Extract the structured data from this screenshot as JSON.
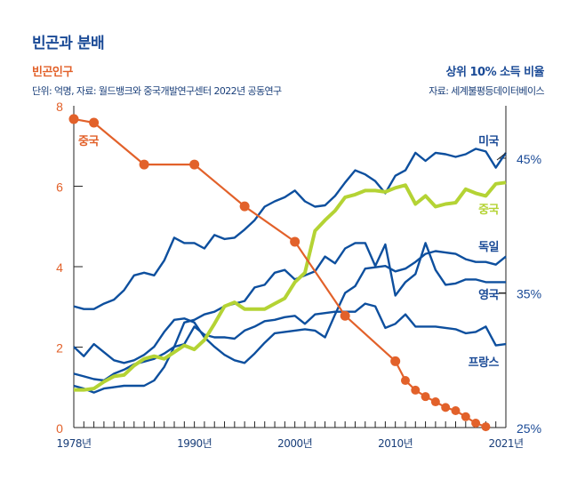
{
  "header": {
    "title": "빈곤과 분배",
    "left_title": "빈곤인구",
    "left_subtitle": "단위: 억명, 자료: 월드뱅크와 중국개발연구센터 2022년 공동연구",
    "right_title": "상위 10% 소득 비율",
    "right_subtitle": "자료: 세계불평등데이터베이스"
  },
  "chart_data": {
    "type": "line",
    "title": "빈곤과 분배",
    "x_ticks": [
      "1978년",
      "1990년",
      "2000년",
      "2010년",
      "2021년"
    ],
    "xlim": [
      1978,
      2021
    ],
    "left_axis": {
      "label": "빈곤인구",
      "unit": "억명",
      "ylim": [
        0,
        8
      ],
      "ticks": [
        "0",
        "2",
        "4",
        "6",
        "8"
      ]
    },
    "right_axis": {
      "label": "상위 10% 소득 비율",
      "ylim": [
        25,
        45
      ],
      "ticks": [
        "25%",
        "35%",
        "45%"
      ]
    },
    "grid": false,
    "colors": {
      "poverty": "#e2612a",
      "china_top10": "#b4d334",
      "others": "#0d4f9e",
      "title": "#1a4a96"
    },
    "poverty_series": {
      "name": "중국",
      "axis": "left",
      "x": [
        1978,
        1980,
        1985,
        1990,
        1995,
        2000,
        2005,
        2010,
        2011,
        2012,
        2013,
        2014,
        2015,
        2016,
        2017,
        2018,
        2019
      ],
      "values": [
        7.67,
        7.58,
        6.54,
        6.54,
        5.5,
        4.62,
        2.78,
        1.65,
        1.17,
        0.93,
        0.77,
        0.64,
        0.5,
        0.42,
        0.27,
        0.11,
        0.02
      ]
    },
    "top10_x_start": 1978,
    "top10_series": [
      {
        "name": "미국",
        "color": "#0d4f9e",
        "values": [
          34.0,
          33.8,
          33.8,
          34.2,
          34.5,
          35.2,
          36.3,
          36.5,
          36.3,
          37.4,
          39.1,
          38.7,
          38.7,
          38.3,
          39.3,
          39.0,
          39.1,
          39.7,
          40.4,
          41.4,
          41.8,
          42.1,
          42.6,
          41.8,
          41.4,
          41.5,
          42.2,
          43.2,
          44.1,
          43.8,
          43.3,
          42.4,
          43.7,
          44.1,
          45.4,
          44.8,
          45.4,
          45.3,
          45.1,
          45.3,
          45.7,
          45.5,
          44.3,
          45.4
        ]
      },
      {
        "name": "중국",
        "color": "#b4d334",
        "values": [
          27.8,
          27.8,
          27.9,
          28.4,
          28.8,
          28.9,
          29.6,
          30.1,
          30.3,
          30.1,
          30.6,
          31.1,
          30.8,
          31.5,
          32.7,
          34.0,
          34.3,
          33.8,
          33.8,
          33.8,
          34.2,
          34.6,
          35.8,
          36.5,
          39.6,
          40.4,
          41.1,
          42.1,
          42.3,
          42.6,
          42.6,
          42.5,
          42.8,
          43.0,
          41.6,
          42.2,
          41.4,
          41.6,
          41.7,
          42.7,
          42.4,
          42.2,
          43.1,
          43.2
        ]
      },
      {
        "name": "독일",
        "color": "#0d4f9e",
        "values": [
          31.0,
          30.3,
          31.2,
          30.6,
          30.0,
          29.8,
          30.0,
          30.4,
          31.0,
          32.1,
          33.0,
          33.1,
          32.8,
          31.7,
          31.0,
          30.4,
          30.0,
          29.8,
          30.5,
          31.3,
          32.0,
          32.1,
          32.2,
          32.3,
          32.2,
          31.7,
          33.4,
          35.0,
          35.5,
          36.8,
          36.9,
          37.0,
          36.6,
          36.8,
          37.3,
          37.9,
          38.1,
          38.0,
          37.9,
          37.5,
          37.3,
          37.3,
          37.1,
          37.7
        ]
      },
      {
        "name": "영국",
        "color": "#0d4f9e",
        "values": [
          28.1,
          27.9,
          27.6,
          27.9,
          28.0,
          28.1,
          28.1,
          28.1,
          28.5,
          29.5,
          31.0,
          32.8,
          33.0,
          33.4,
          33.6,
          34.0,
          34.2,
          34.4,
          35.4,
          35.6,
          36.5,
          36.7,
          36.0,
          36.3,
          36.6,
          37.7,
          37.2,
          38.3,
          38.7,
          38.7,
          37.0,
          38.6,
          34.8,
          35.8,
          36.4,
          38.7,
          36.7,
          35.6,
          35.7,
          36.0,
          36.0,
          35.8,
          35.8,
          35.8
        ]
      },
      {
        "name": "프랑스",
        "color": "#0d4f9e",
        "values": [
          29.0,
          28.8,
          28.6,
          28.5,
          29.0,
          29.3,
          29.7,
          29.9,
          30.1,
          30.5,
          31.0,
          31.2,
          32.5,
          31.9,
          31.7,
          31.7,
          31.6,
          32.2,
          32.5,
          32.9,
          33.0,
          33.2,
          33.3,
          32.7,
          33.4,
          33.5,
          33.6,
          33.6,
          33.6,
          34.2,
          34.0,
          32.4,
          32.7,
          33.4,
          32.5,
          32.5,
          32.5,
          32.4,
          32.3,
          32.0,
          32.1,
          32.5,
          31.1,
          31.2
        ]
      }
    ]
  }
}
